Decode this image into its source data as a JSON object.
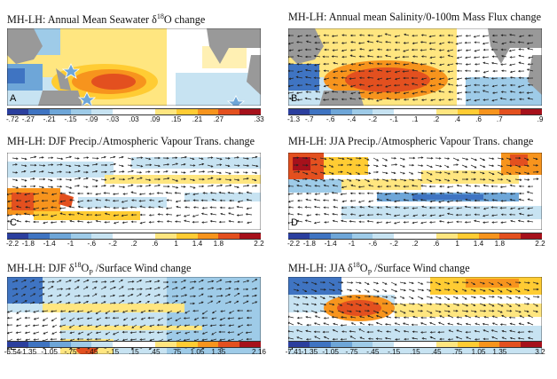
{
  "panels": [
    {
      "id": "A",
      "title_main": "MH-LH: Annual Mean Seawater δ",
      "title_sup": "18",
      "title_rest": "O change",
      "ticks": [
        "-.72",
        "-.27",
        "-.21",
        "-.15",
        "-.09",
        "-.03",
        ".03",
        ".09",
        ".15",
        ".21",
        ".27",
        ".33"
      ]
    },
    {
      "id": "B",
      "title_main": "MH-LH: Annual mean Salinity/0-100m Mass Flux change",
      "title_sup": "",
      "title_rest": "",
      "ticks": [
        "-1.3",
        "-.7",
        "-.6",
        "-.4",
        "-.2",
        "-.1",
        ".1",
        ".2",
        ".4",
        ".6",
        ".7",
        ".9"
      ]
    },
    {
      "id": "C",
      "title_main": "MH-LH: DJF Precip./Atmospheric Vapour Trans. change",
      "title_sup": "",
      "title_rest": "",
      "ticks": [
        "-2.2",
        "-1.8",
        "-1.4",
        "-1",
        "-.6",
        "-.2",
        ".2",
        ".6",
        "1",
        "1.4",
        "1.8",
        "2.2"
      ]
    },
    {
      "id": "D",
      "title_main": "MH-LH: JJA Precip./Atmospheric Vapour Trans. change",
      "title_sup": "",
      "title_rest": "",
      "ticks": [
        "-2.2",
        "-1.8",
        "-1.4",
        "-1",
        "-.6",
        "-.2",
        ".2",
        ".6",
        "1",
        "1.4",
        "1.8",
        "2.2"
      ]
    },
    {
      "id": "E",
      "title_main": "MH-LH: DJF δ",
      "title_sup": "18",
      "title_rest": "O",
      "title_sub": "P",
      "title_end": " /Surface Wind change",
      "ticks": [
        "-6.54",
        "-1.35",
        "-1.05",
        "-.75",
        "-.45",
        "-.15",
        ".15",
        ".45",
        ".75",
        "1.05",
        "1.35",
        "2.16"
      ]
    },
    {
      "id": "F",
      "title_main": "MH-LH: JJA δ",
      "title_sup": "18",
      "title_rest": "O",
      "title_sub": "P",
      "title_end": " /Surface Wind change",
      "ticks": [
        "-7.41",
        "-1.35",
        "-1.05",
        "-.75",
        "-.45",
        "-.15",
        ".15",
        ".45",
        ".75",
        "1.05",
        "1.35",
        "3.2"
      ]
    }
  ],
  "palette": [
    "#2b3f9e",
    "#3f74c2",
    "#6ea6d8",
    "#9ecbe8",
    "#c7e3f2",
    "#ffffff",
    "#ffffff",
    "#ffe680",
    "#ffcc33",
    "#f7941d",
    "#e3501f",
    "#a6111b"
  ]
}
